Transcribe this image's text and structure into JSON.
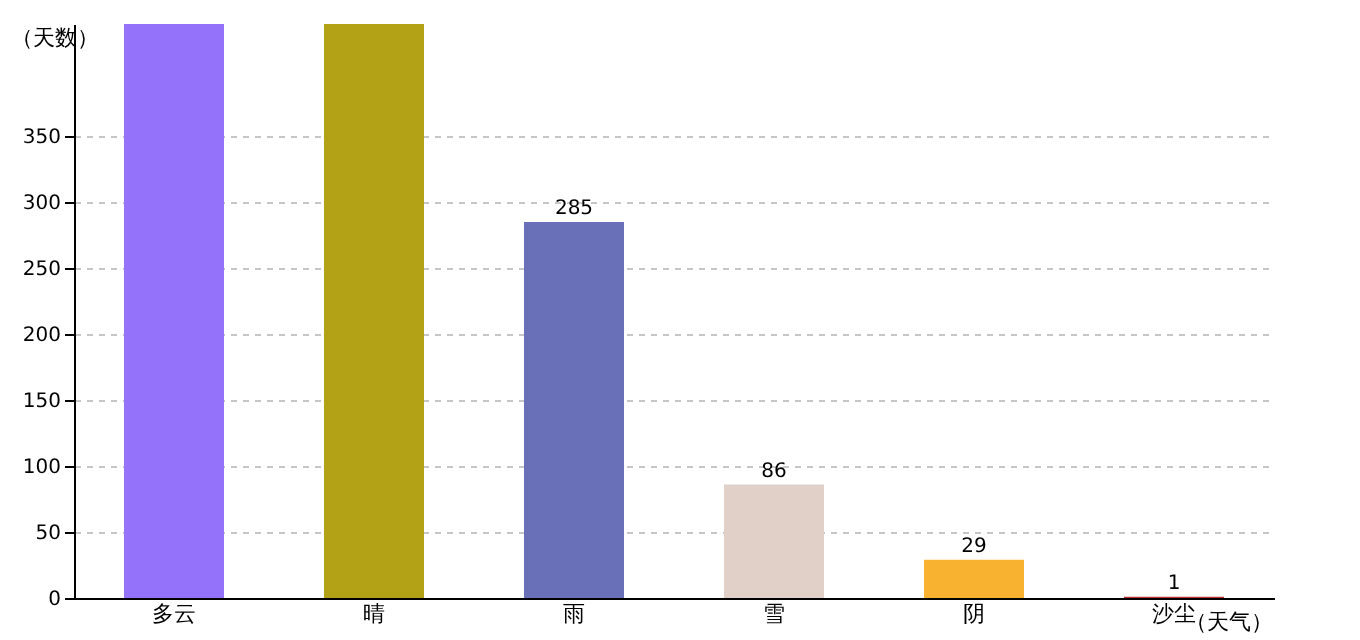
{
  "chart_data": {
    "type": "bar",
    "xlabel": "（天气）",
    "ylabel": "（天数）",
    "categories": [
      "多云",
      "晴",
      "雨",
      "雪",
      "阴",
      "沙尘"
    ],
    "values": [
      435,
      435,
      285,
      86,
      29,
      1
    ],
    "colors": [
      "#9473fa",
      "#b3a216",
      "#6a70b8",
      "#e0d0c8",
      "#f9b22f",
      "#c03030"
    ],
    "value_labels": [
      null,
      null,
      "285",
      "86",
      "29",
      "1"
    ],
    "ylim": [
      0,
      435
    ],
    "yticks": [
      0,
      50,
      100,
      150,
      200,
      250,
      300,
      350
    ],
    "grid": "y"
  }
}
